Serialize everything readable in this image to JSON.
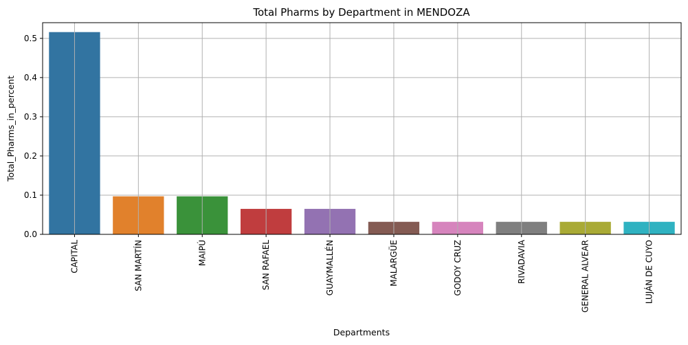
{
  "chart_data": {
    "type": "bar",
    "title": "Total Pharms by Department in MENDOZA",
    "xlabel": "Departments",
    "ylabel": "Total_Pharms_in_percent",
    "categories": [
      "CAPITAL",
      "SAN MARTÍN",
      "MAIPÚ",
      "SAN RAFAEL",
      "GUAYMALLÉN",
      "MALARGÜE",
      "GODOY CRUZ",
      "RIVADAVIA",
      "GENERAL ALVEAR",
      "LUJÁN DE CUYO"
    ],
    "values": [
      0.516,
      0.097,
      0.097,
      0.065,
      0.065,
      0.032,
      0.032,
      0.032,
      0.032,
      0.032
    ],
    "colors": [
      "#3274a1",
      "#e1812c",
      "#3a923a",
      "#c03d3e",
      "#9372b2",
      "#845b53",
      "#d684bd",
      "#7f7f7f",
      "#a9aa35",
      "#2fb2c1"
    ],
    "ylim": [
      0,
      0.54
    ],
    "yticks": [
      "0.0",
      "0.1",
      "0.2",
      "0.3",
      "0.4",
      "0.5"
    ],
    "grid": true
  }
}
